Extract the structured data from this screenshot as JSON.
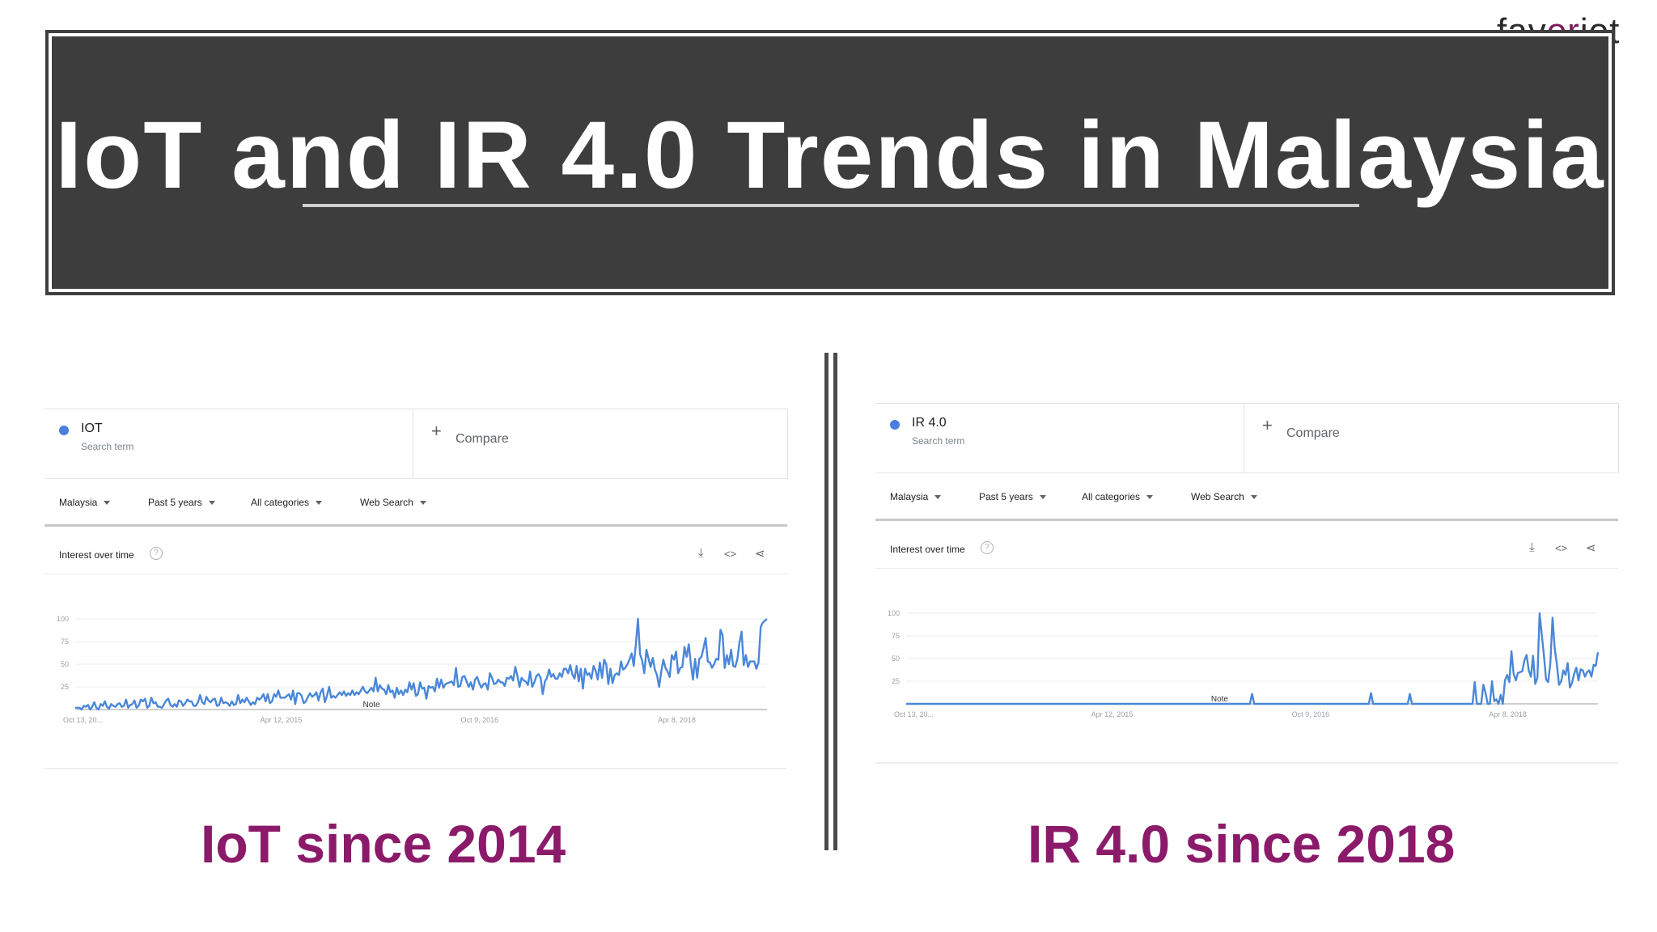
{
  "brand": {
    "name_start": "fav",
    "name_accent": "or",
    "name_end": "iot"
  },
  "banner": {
    "title": "IoT and IR 4.0 Trends in Malaysia"
  },
  "colors": {
    "line": "#4a87d8",
    "accent": "#8b1a6a",
    "banner": "#3d3d3d"
  },
  "panels": [
    {
      "term": "IOT",
      "term_sub": "Search term",
      "compare": "Compare",
      "filters": [
        "Malaysia",
        "Past 5 years",
        "All categories",
        "Web Search"
      ],
      "chart_header": "Interest over time",
      "caption": "IoT since 2014"
    },
    {
      "term": "IR 4.0",
      "term_sub": "Search term",
      "compare": "Compare",
      "filters": [
        "Malaysia",
        "Past 5 years",
        "All categories",
        "Web Search"
      ],
      "chart_header": "Interest over time",
      "caption": "IR 4.0 since 2018"
    }
  ],
  "chart_data": [
    {
      "type": "line",
      "title": "Interest over time",
      "series_name": "IOT",
      "ylim": [
        0,
        100
      ],
      "yticks": [
        "100",
        "75",
        "50",
        "25"
      ],
      "xticks": [
        "Oct 13, 20...",
        "Apr 12, 2015",
        "Oct 9, 2016",
        "Apr 8, 2018"
      ],
      "note_label": "Note",
      "note_index": 140,
      "values": [
        2,
        2,
        2,
        0,
        4,
        3,
        5,
        0,
        3,
        8,
        2,
        0,
        6,
        4,
        9,
        3,
        1,
        6,
        4,
        3,
        6,
        7,
        3,
        4,
        11,
        2,
        5,
        6,
        10,
        2,
        4,
        11,
        9,
        12,
        2,
        4,
        13,
        7,
        8,
        3,
        3,
        2,
        6,
        10,
        12,
        5,
        3,
        6,
        3,
        10,
        9,
        4,
        7,
        11,
        9,
        9,
        4,
        4,
        8,
        16,
        8,
        6,
        14,
        10,
        8,
        11,
        12,
        4,
        5,
        13,
        7,
        8,
        7,
        4,
        9,
        5,
        6,
        16,
        7,
        11,
        8,
        13,
        9,
        5,
        8,
        6,
        13,
        11,
        13,
        17,
        9,
        17,
        7,
        9,
        17,
        14,
        21,
        13,
        13,
        13,
        15,
        17,
        11,
        21,
        6,
        18,
        18,
        15,
        7,
        9,
        14,
        18,
        14,
        16,
        19,
        10,
        19,
        23,
        8,
        15,
        25,
        13,
        15,
        13,
        16,
        19,
        16,
        20,
        15,
        18,
        16,
        21,
        16,
        19,
        17,
        21,
        25,
        20,
        18,
        21,
        24,
        20,
        35,
        20,
        27,
        23,
        22,
        17,
        27,
        19,
        21,
        13,
        24,
        17,
        21,
        16,
        22,
        19,
        30,
        22,
        29,
        15,
        17,
        30,
        23,
        24,
        12,
        26,
        24,
        25,
        20,
        34,
        24,
        33,
        24,
        28,
        29,
        30,
        31,
        27,
        46,
        25,
        26,
        36,
        37,
        31,
        25,
        30,
        22,
        33,
        36,
        29,
        24,
        28,
        29,
        22,
        40,
        35,
        28,
        29,
        33,
        30,
        30,
        26,
        35,
        34,
        37,
        32,
        47,
        37,
        25,
        35,
        32,
        31,
        27,
        42,
        25,
        30,
        37,
        39,
        35,
        17,
        31,
        35,
        44,
        36,
        39,
        34,
        34,
        40,
        36,
        45,
        45,
        40,
        49,
        39,
        34,
        48,
        31,
        45,
        23,
        45,
        38,
        40,
        34,
        48,
        43,
        33,
        52,
        35,
        55,
        50,
        28,
        45,
        29,
        38,
        40,
        38,
        53,
        44,
        46,
        50,
        55,
        62,
        48,
        72,
        100,
        61,
        54,
        40,
        66,
        56,
        47,
        57,
        44,
        38,
        25,
        42,
        55,
        46,
        42,
        36,
        60,
        55,
        64,
        40,
        46,
        47,
        69,
        58,
        72,
        50,
        33,
        56,
        35,
        56,
        58,
        68,
        79,
        53,
        52,
        46,
        50,
        56,
        55,
        88,
        82,
        46,
        60,
        50,
        66,
        48,
        47,
        56,
        74,
        86,
        49,
        60,
        47,
        53,
        53,
        53,
        45,
        52,
        91,
        96,
        98,
        100
      ]
    },
    {
      "type": "line",
      "title": "Interest over time",
      "series_name": "IR 4.0",
      "ylim": [
        0,
        100
      ],
      "yticks": [
        "100",
        "75",
        "50",
        "25"
      ],
      "xticks": [
        "Oct 13, 20...",
        "Apr 12, 2015",
        "Oct 9, 2016",
        "Apr 8, 2018"
      ],
      "note_label": "Note",
      "note_index": 145,
      "values": [
        0,
        0,
        0,
        0,
        0,
        0,
        0,
        0,
        0,
        0,
        0,
        0,
        0,
        0,
        0,
        0,
        0,
        0,
        0,
        0,
        0,
        0,
        0,
        0,
        0,
        0,
        0,
        0,
        0,
        0,
        0,
        0,
        0,
        0,
        0,
        0,
        0,
        0,
        0,
        0,
        0,
        0,
        0,
        0,
        0,
        0,
        0,
        0,
        0,
        0,
        0,
        0,
        0,
        0,
        0,
        0,
        0,
        0,
        0,
        0,
        0,
        0,
        0,
        0,
        0,
        0,
        0,
        0,
        0,
        0,
        0,
        0,
        0,
        0,
        0,
        0,
        0,
        0,
        0,
        0,
        0,
        0,
        0,
        0,
        0,
        0,
        0,
        0,
        0,
        0,
        0,
        0,
        0,
        0,
        0,
        0,
        0,
        0,
        0,
        0,
        0,
        0,
        0,
        0,
        0,
        0,
        0,
        0,
        0,
        0,
        0,
        0,
        0,
        0,
        0,
        0,
        0,
        0,
        0,
        0,
        0,
        0,
        0,
        0,
        0,
        0,
        0,
        0,
        0,
        0,
        0,
        0,
        0,
        0,
        0,
        0,
        0,
        0,
        0,
        0,
        0,
        0,
        0,
        0,
        0,
        0,
        0,
        0,
        0,
        0,
        0,
        0,
        0,
        0,
        0,
        0,
        0,
        0,
        0,
        0,
        11,
        0,
        0,
        0,
        0,
        0,
        0,
        0,
        0,
        0,
        0,
        0,
        0,
        0,
        0,
        0,
        0,
        0,
        0,
        0,
        0,
        0,
        0,
        0,
        0,
        0,
        0,
        0,
        0,
        0,
        0,
        0,
        0,
        0,
        0,
        0,
        0,
        0,
        0,
        0,
        0,
        0,
        0,
        0,
        0,
        0,
        0,
        0,
        0,
        0,
        0,
        0,
        0,
        0,
        0,
        12,
        0,
        0,
        0,
        0,
        0,
        0,
        0,
        0,
        0,
        0,
        0,
        0,
        0,
        0,
        0,
        0,
        0,
        11,
        0,
        0,
        0,
        0,
        0,
        0,
        0,
        0,
        0,
        0,
        0,
        0,
        0,
        0,
        0,
        0,
        0,
        0,
        0,
        0,
        0,
        0,
        0,
        0,
        0,
        0,
        0,
        0,
        0,
        24,
        0,
        0,
        0,
        21,
        12,
        0,
        0,
        25,
        3,
        5,
        0,
        10,
        0,
        26,
        32,
        24,
        58,
        33,
        26,
        34,
        35,
        36,
        48,
        54,
        37,
        30,
        53,
        22,
        29,
        100,
        77,
        54,
        27,
        24,
        45,
        95,
        61,
        44,
        21,
        25,
        37,
        32,
        45,
        18,
        23,
        33,
        40,
        26,
        38,
        37,
        30,
        35,
        37,
        30,
        43,
        42,
        57
      ]
    }
  ]
}
